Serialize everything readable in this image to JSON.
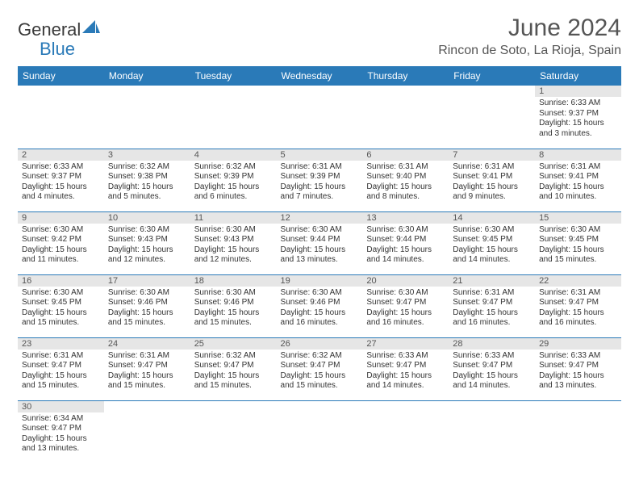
{
  "brand": {
    "general": "General",
    "blue": "Blue"
  },
  "title": "June 2024",
  "location": "Rincon de Soto, La Rioja, Spain",
  "colors": {
    "header_bg": "#2a7ab8",
    "header_text": "#ffffff",
    "daynum_bg": "#e6e6e6",
    "border": "#2a7ab8",
    "text": "#333333"
  },
  "weekdays": [
    "Sunday",
    "Monday",
    "Tuesday",
    "Wednesday",
    "Thursday",
    "Friday",
    "Saturday"
  ],
  "weeks": [
    [
      null,
      null,
      null,
      null,
      null,
      null,
      {
        "n": "1",
        "sunrise": "6:33 AM",
        "sunset": "9:37 PM",
        "daylight": "15 hours and 3 minutes."
      }
    ],
    [
      {
        "n": "2",
        "sunrise": "6:33 AM",
        "sunset": "9:37 PM",
        "daylight": "15 hours and 4 minutes."
      },
      {
        "n": "3",
        "sunrise": "6:32 AM",
        "sunset": "9:38 PM",
        "daylight": "15 hours and 5 minutes."
      },
      {
        "n": "4",
        "sunrise": "6:32 AM",
        "sunset": "9:39 PM",
        "daylight": "15 hours and 6 minutes."
      },
      {
        "n": "5",
        "sunrise": "6:31 AM",
        "sunset": "9:39 PM",
        "daylight": "15 hours and 7 minutes."
      },
      {
        "n": "6",
        "sunrise": "6:31 AM",
        "sunset": "9:40 PM",
        "daylight": "15 hours and 8 minutes."
      },
      {
        "n": "7",
        "sunrise": "6:31 AM",
        "sunset": "9:41 PM",
        "daylight": "15 hours and 9 minutes."
      },
      {
        "n": "8",
        "sunrise": "6:31 AM",
        "sunset": "9:41 PM",
        "daylight": "15 hours and 10 minutes."
      }
    ],
    [
      {
        "n": "9",
        "sunrise": "6:30 AM",
        "sunset": "9:42 PM",
        "daylight": "15 hours and 11 minutes."
      },
      {
        "n": "10",
        "sunrise": "6:30 AM",
        "sunset": "9:43 PM",
        "daylight": "15 hours and 12 minutes."
      },
      {
        "n": "11",
        "sunrise": "6:30 AM",
        "sunset": "9:43 PM",
        "daylight": "15 hours and 12 minutes."
      },
      {
        "n": "12",
        "sunrise": "6:30 AM",
        "sunset": "9:44 PM",
        "daylight": "15 hours and 13 minutes."
      },
      {
        "n": "13",
        "sunrise": "6:30 AM",
        "sunset": "9:44 PM",
        "daylight": "15 hours and 14 minutes."
      },
      {
        "n": "14",
        "sunrise": "6:30 AM",
        "sunset": "9:45 PM",
        "daylight": "15 hours and 14 minutes."
      },
      {
        "n": "15",
        "sunrise": "6:30 AM",
        "sunset": "9:45 PM",
        "daylight": "15 hours and 15 minutes."
      }
    ],
    [
      {
        "n": "16",
        "sunrise": "6:30 AM",
        "sunset": "9:45 PM",
        "daylight": "15 hours and 15 minutes."
      },
      {
        "n": "17",
        "sunrise": "6:30 AM",
        "sunset": "9:46 PM",
        "daylight": "15 hours and 15 minutes."
      },
      {
        "n": "18",
        "sunrise": "6:30 AM",
        "sunset": "9:46 PM",
        "daylight": "15 hours and 15 minutes."
      },
      {
        "n": "19",
        "sunrise": "6:30 AM",
        "sunset": "9:46 PM",
        "daylight": "15 hours and 16 minutes."
      },
      {
        "n": "20",
        "sunrise": "6:30 AM",
        "sunset": "9:47 PM",
        "daylight": "15 hours and 16 minutes."
      },
      {
        "n": "21",
        "sunrise": "6:31 AM",
        "sunset": "9:47 PM",
        "daylight": "15 hours and 16 minutes."
      },
      {
        "n": "22",
        "sunrise": "6:31 AM",
        "sunset": "9:47 PM",
        "daylight": "15 hours and 16 minutes."
      }
    ],
    [
      {
        "n": "23",
        "sunrise": "6:31 AM",
        "sunset": "9:47 PM",
        "daylight": "15 hours and 15 minutes."
      },
      {
        "n": "24",
        "sunrise": "6:31 AM",
        "sunset": "9:47 PM",
        "daylight": "15 hours and 15 minutes."
      },
      {
        "n": "25",
        "sunrise": "6:32 AM",
        "sunset": "9:47 PM",
        "daylight": "15 hours and 15 minutes."
      },
      {
        "n": "26",
        "sunrise": "6:32 AM",
        "sunset": "9:47 PM",
        "daylight": "15 hours and 15 minutes."
      },
      {
        "n": "27",
        "sunrise": "6:33 AM",
        "sunset": "9:47 PM",
        "daylight": "15 hours and 14 minutes."
      },
      {
        "n": "28",
        "sunrise": "6:33 AM",
        "sunset": "9:47 PM",
        "daylight": "15 hours and 14 minutes."
      },
      {
        "n": "29",
        "sunrise": "6:33 AM",
        "sunset": "9:47 PM",
        "daylight": "15 hours and 13 minutes."
      }
    ],
    [
      {
        "n": "30",
        "sunrise": "6:34 AM",
        "sunset": "9:47 PM",
        "daylight": "15 hours and 13 minutes."
      },
      null,
      null,
      null,
      null,
      null,
      null
    ]
  ],
  "labels": {
    "sunrise": "Sunrise:",
    "sunset": "Sunset:",
    "daylight": "Daylight:"
  }
}
